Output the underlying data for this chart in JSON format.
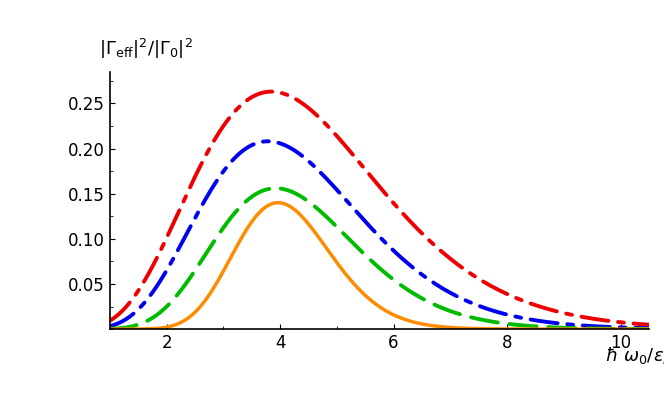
{
  "xlim": [
    1,
    10.5
  ],
  "ylim": [
    0,
    0.285
  ],
  "xticks": [
    2,
    4,
    6,
    8,
    10
  ],
  "yticks": [
    0.05,
    0.1,
    0.15,
    0.2,
    0.25
  ],
  "curves": [
    {
      "color": "#EE0000",
      "ls_type": "dashdot",
      "lw": 2.8,
      "A": 0.263,
      "alpha": 5.5,
      "beta": 1.43,
      "label": "red"
    },
    {
      "color": "#0000EE",
      "ls_type": "dashdot",
      "lw": 2.8,
      "A": 0.208,
      "alpha": 7.0,
      "beta": 1.85,
      "label": "blue"
    },
    {
      "color": "#00BB00",
      "ls_type": "dashed",
      "lw": 2.8,
      "A": 0.156,
      "alpha": 10.0,
      "beta": 2.55,
      "label": "green"
    },
    {
      "color": "#FF8C00",
      "ls_type": "solid",
      "lw": 2.5,
      "A": 0.14,
      "alpha": 22.0,
      "beta": 5.55,
      "label": "orange"
    }
  ],
  "background_color": "#FFFFFF",
  "figsize": [
    6.64,
    4.04
  ],
  "dpi": 100
}
